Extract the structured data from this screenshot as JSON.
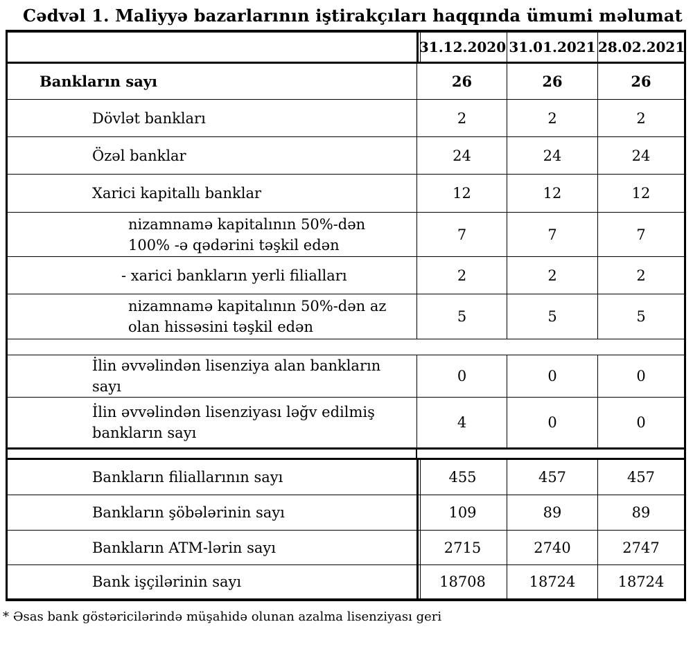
{
  "title": "Cədvəl 1. Maliyyə bazarlarının iştirakçıları haqqında ümumi məlumat",
  "table": {
    "columns": [
      "31.12.2020",
      "31.01.2021",
      "28.02.2021"
    ],
    "rows": [
      {
        "label": "Bankların sayı",
        "values": [
          "26",
          "26",
          "26"
        ],
        "style": "bold",
        "level": 1
      },
      {
        "label": "Dövlət bankları",
        "values": [
          "2",
          "2",
          "2"
        ],
        "level": 2
      },
      {
        "label": "Özəl banklar",
        "values": [
          "24",
          "24",
          "24"
        ],
        "level": 2
      },
      {
        "label": "Xarici kapitallı banklar",
        "values": [
          "12",
          "12",
          "12"
        ],
        "level": 2
      },
      {
        "label": "nizamnamə kapitalının 50%-dən\n100% -ə qədərini təşkil edən",
        "values": [
          "7",
          "7",
          "7"
        ],
        "level": 3
      },
      {
        "label": "-  xarici bankların yerli filialları",
        "values": [
          "2",
          "2",
          "2"
        ],
        "level": 3
      },
      {
        "label": "nizamnamə kapitalının 50%-dən az\nolan hissəsini  təşkil edən",
        "values": [
          "5",
          "5",
          "5"
        ],
        "level": 3
      },
      {
        "label": "İlin əvvəlindən lisenziya alan bankların\nsayı",
        "values": [
          "0",
          "0",
          "0"
        ],
        "level": 2
      },
      {
        "label": "İlin əvvəlindən lisenziyası ləğv edilmiş\nbankların sayı",
        "values": [
          "4",
          "0",
          "0"
        ],
        "level": 2
      },
      {
        "label": "Bankların filiallarının sayı",
        "values": [
          "455",
          "457",
          "457"
        ],
        "level": 2,
        "section": 2
      },
      {
        "label": "Bankların şöbələrinin sayı",
        "values": [
          "109",
          "89",
          "89"
        ],
        "level": 2,
        "section": 2
      },
      {
        "label": "Bankların ATM-lərin sayı",
        "values": [
          "2715",
          "2740",
          "2747"
        ],
        "level": 2,
        "section": 2
      },
      {
        "label": "Bank işçilərinin sayı",
        "values": [
          "18708",
          "18724",
          "18724"
        ],
        "level": 2,
        "section": 2
      }
    ]
  },
  "footnote": "* Əsas bank göstəricilərində müşahidə olunan azalma lisenziyası geri"
}
